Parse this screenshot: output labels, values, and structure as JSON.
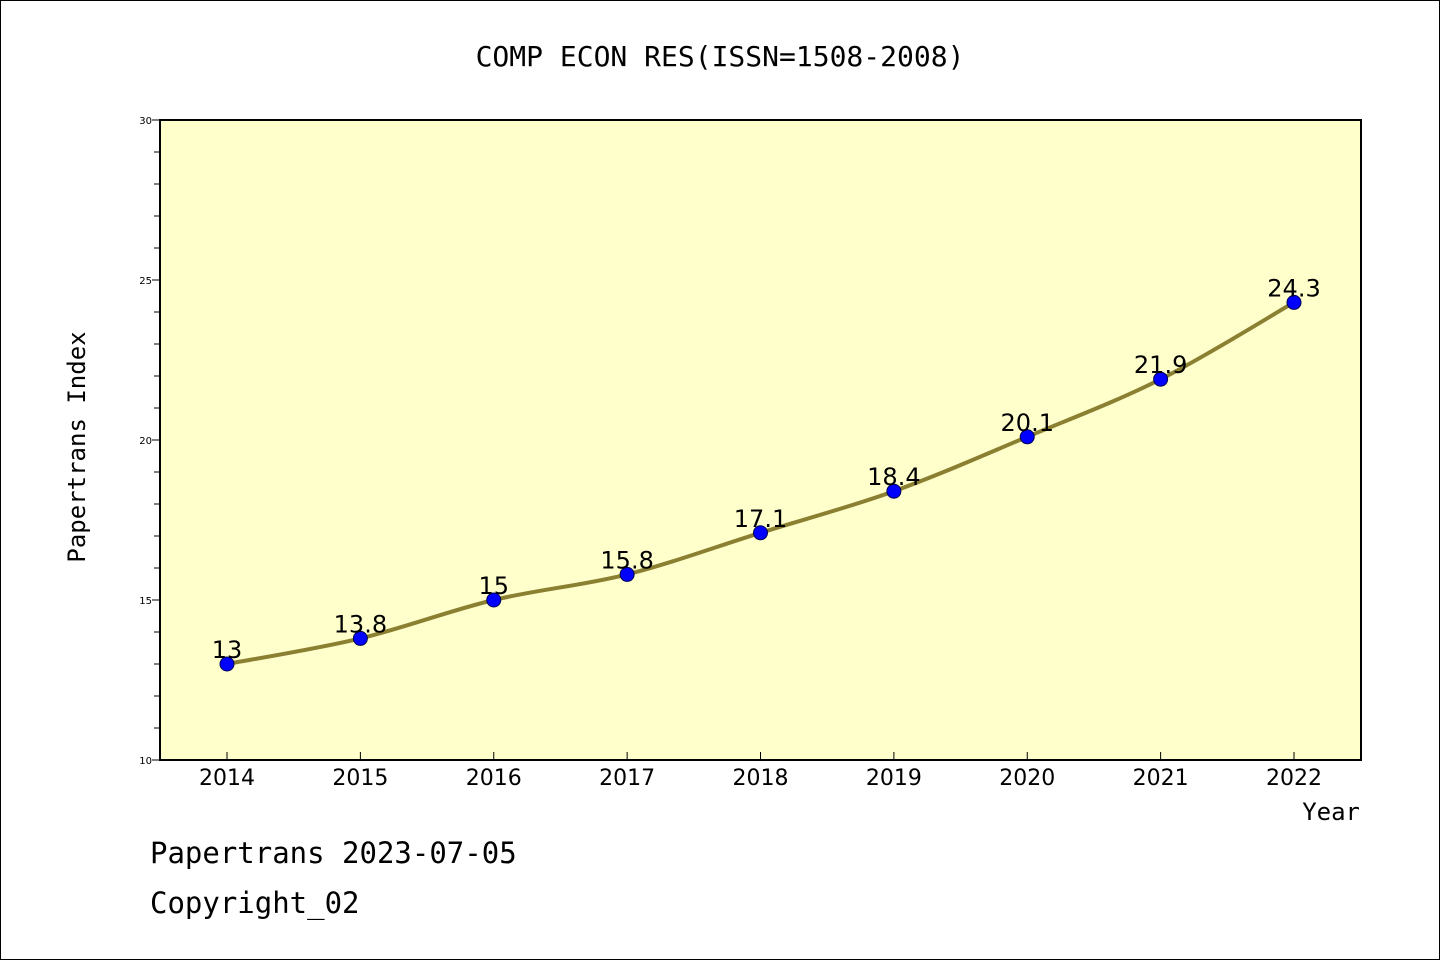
{
  "chart_data": {
    "type": "line",
    "title": "COMP ECON RES(ISSN=1508-2008)",
    "xlabel": "Year",
    "ylabel": "Papertrans Index",
    "categories": [
      "2014",
      "2015",
      "2016",
      "2017",
      "2018",
      "2019",
      "2020",
      "2021",
      "2022"
    ],
    "series": [
      {
        "values": [
          13,
          13.8,
          15,
          15.8,
          17.1,
          18.4,
          20.1,
          21.9,
          24.3
        ],
        "labels": [
          "13",
          "13.8",
          "15",
          "15.8",
          "17.1",
          "18.4",
          "20.1",
          "21.9",
          "24.3"
        ]
      }
    ],
    "ylim": [
      10,
      30
    ],
    "yticks": [
      "10",
      "15",
      "20",
      "25",
      "30"
    ],
    "grid": false,
    "colors": {
      "plot_background": "#ffffcc",
      "line": "#8b8032",
      "marker": "#0000ff"
    }
  },
  "footer": {
    "line1": "Papertrans 2023-07-05",
    "line2": "Copyright_02"
  }
}
